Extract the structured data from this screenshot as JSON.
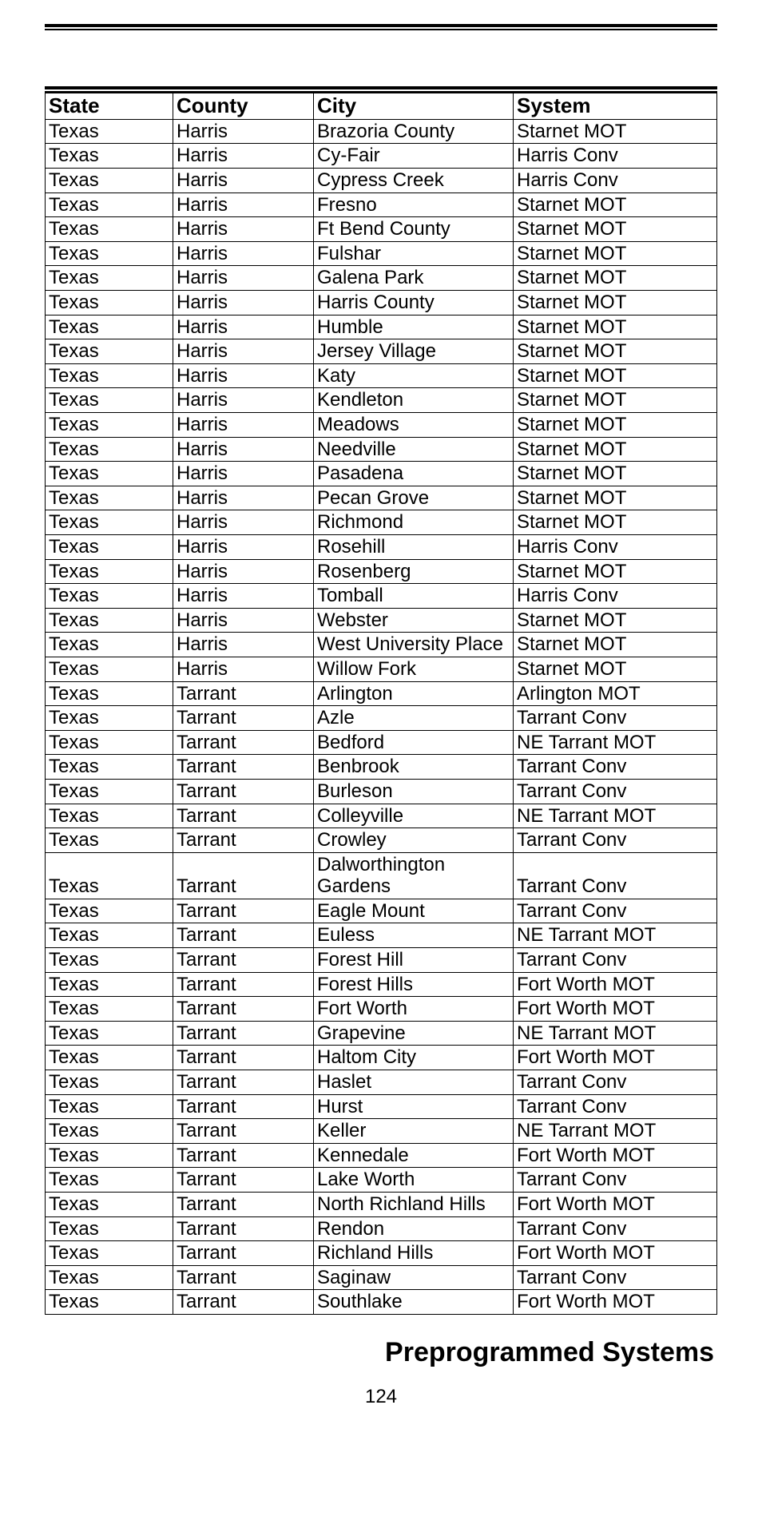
{
  "section_title": "Preprogrammed Systems",
  "page_number": "124",
  "table": {
    "columns": [
      "State",
      "County",
      "City",
      "System"
    ],
    "rows": [
      [
        "Texas",
        "Harris",
        "Brazoria County",
        "Starnet MOT"
      ],
      [
        "Texas",
        "Harris",
        "Cy-Fair",
        "Harris Conv"
      ],
      [
        "Texas",
        "Harris",
        "Cypress Creek",
        "Harris Conv"
      ],
      [
        "Texas",
        "Harris",
        "Fresno",
        "Starnet MOT"
      ],
      [
        "Texas",
        "Harris",
        "Ft Bend County",
        "Starnet MOT"
      ],
      [
        "Texas",
        "Harris",
        "Fulshar",
        "Starnet MOT"
      ],
      [
        "Texas",
        "Harris",
        "Galena Park",
        "Starnet MOT"
      ],
      [
        "Texas",
        "Harris",
        "Harris County",
        "Starnet MOT"
      ],
      [
        "Texas",
        "Harris",
        "Humble",
        "Starnet MOT"
      ],
      [
        "Texas",
        "Harris",
        "Jersey Village",
        "Starnet MOT"
      ],
      [
        "Texas",
        "Harris",
        "Katy",
        "Starnet MOT"
      ],
      [
        "Texas",
        "Harris",
        "Kendleton",
        "Starnet MOT"
      ],
      [
        "Texas",
        "Harris",
        "Meadows",
        "Starnet MOT"
      ],
      [
        "Texas",
        "Harris",
        "Needville",
        "Starnet MOT"
      ],
      [
        "Texas",
        "Harris",
        "Pasadena",
        "Starnet MOT"
      ],
      [
        "Texas",
        "Harris",
        "Pecan Grove",
        "Starnet MOT"
      ],
      [
        "Texas",
        "Harris",
        "Richmond",
        "Starnet MOT"
      ],
      [
        "Texas",
        "Harris",
        "Rosehill",
        "Harris Conv"
      ],
      [
        "Texas",
        "Harris",
        "Rosenberg",
        "Starnet MOT"
      ],
      [
        "Texas",
        "Harris",
        "Tomball",
        "Harris Conv"
      ],
      [
        "Texas",
        "Harris",
        "Webster",
        "Starnet MOT"
      ],
      [
        "Texas",
        "Harris",
        "West University Place",
        "Starnet MOT"
      ],
      [
        "Texas",
        "Harris",
        "Willow Fork",
        "Starnet MOT"
      ],
      [
        "Texas",
        "Tarrant",
        "Arlington",
        "Arlington MOT"
      ],
      [
        "Texas",
        "Tarrant",
        "Azle",
        "Tarrant Conv"
      ],
      [
        "Texas",
        "Tarrant",
        "Bedford",
        "NE Tarrant MOT"
      ],
      [
        "Texas",
        "Tarrant",
        "Benbrook",
        "Tarrant Conv"
      ],
      [
        "Texas",
        "Tarrant",
        "Burleson",
        "Tarrant Conv"
      ],
      [
        "Texas",
        "Tarrant",
        "Colleyville",
        "NE Tarrant MOT"
      ],
      [
        "Texas",
        "Tarrant",
        "Crowley",
        "Tarrant Conv"
      ],
      [
        "Texas",
        "Tarrant",
        "Dalworthington Gardens",
        "Tarrant Conv"
      ],
      [
        "Texas",
        "Tarrant",
        "Eagle Mount",
        "Tarrant Conv"
      ],
      [
        "Texas",
        "Tarrant",
        "Euless",
        "NE Tarrant MOT"
      ],
      [
        "Texas",
        "Tarrant",
        "Forest Hill",
        "Tarrant Conv"
      ],
      [
        "Texas",
        "Tarrant",
        "Forest Hills",
        "Fort Worth MOT"
      ],
      [
        "Texas",
        "Tarrant",
        "Fort Worth",
        "Fort Worth MOT"
      ],
      [
        "Texas",
        "Tarrant",
        "Grapevine",
        "NE Tarrant MOT"
      ],
      [
        "Texas",
        "Tarrant",
        "Haltom City",
        "Fort Worth MOT"
      ],
      [
        "Texas",
        "Tarrant",
        "Haslet",
        "Tarrant Conv"
      ],
      [
        "Texas",
        "Tarrant",
        "Hurst",
        "Tarrant Conv"
      ],
      [
        "Texas",
        "Tarrant",
        "Keller",
        "NE Tarrant MOT"
      ],
      [
        "Texas",
        "Tarrant",
        "Kennedale",
        "Fort Worth MOT"
      ],
      [
        "Texas",
        "Tarrant",
        "Lake Worth",
        "Tarrant Conv"
      ],
      [
        "Texas",
        "Tarrant",
        "North Richland Hills",
        "Fort Worth MOT"
      ],
      [
        "Texas",
        "Tarrant",
        "Rendon",
        "Tarrant Conv"
      ],
      [
        "Texas",
        "Tarrant",
        "Richland Hills",
        "Fort Worth MOT"
      ],
      [
        "Texas",
        "Tarrant",
        "Saginaw",
        "Tarrant Conv"
      ],
      [
        "Texas",
        "Tarrant",
        "Southlake",
        "Fort Worth MOT"
      ]
    ]
  }
}
